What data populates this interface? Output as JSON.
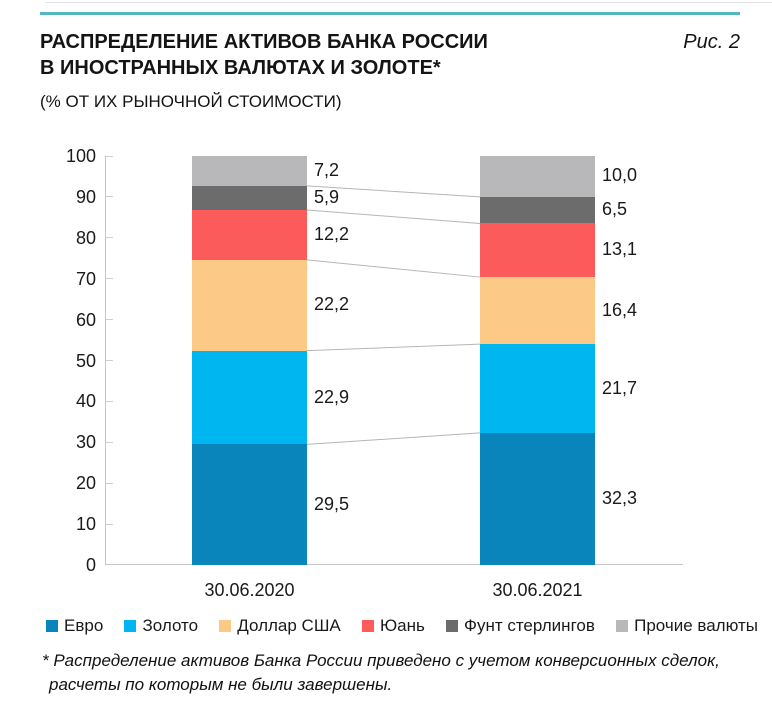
{
  "header": {
    "title_line1": "РАСПРЕДЕЛЕНИЕ АКТИВОВ БАНКА РОССИИ",
    "title_line2": "В ИНОСТРАННЫХ ВАЛЮТАХ И ЗОЛОТЕ*",
    "subtitle": "(% ОТ ИХ РЫНОЧНОЙ СТОИМОСТИ)",
    "figure_label": "Рис. 2",
    "accent_rule_color": "#57b6c3"
  },
  "chart_data": {
    "type": "bar",
    "stacked": true,
    "categories": [
      "30.06.2020",
      "30.06.2021"
    ],
    "series": [
      {
        "name": "Евро",
        "color": "#0985bb",
        "values": [
          29.5,
          32.3
        ]
      },
      {
        "name": "Золото",
        "color": "#00b6f0",
        "values": [
          22.9,
          21.7
        ]
      },
      {
        "name": "Доллар США",
        "color": "#fcca86",
        "values": [
          22.2,
          16.4
        ]
      },
      {
        "name": "Юань",
        "color": "#fc5b5b",
        "values": [
          12.2,
          13.1
        ]
      },
      {
        "name": "Фунт стерлингов",
        "color": "#6c6c6c",
        "values": [
          5.9,
          6.5
        ]
      },
      {
        "name": "Прочие валюты",
        "color": "#b8b8ba",
        "values": [
          7.2,
          10.0
        ]
      }
    ],
    "value_labels": [
      [
        "29,5",
        "22,9",
        "22,2",
        "12,2",
        "5,9",
        "7,2"
      ],
      [
        "32,3",
        "21,7",
        "16,4",
        "13,1",
        "6,5",
        "10,0"
      ]
    ],
    "ylim": [
      0,
      100
    ],
    "yticks": [
      "0",
      "10",
      "20",
      "30",
      "40",
      "50",
      "60",
      "70",
      "80",
      "90",
      "100"
    ],
    "grid": false,
    "legend_position": "bottom",
    "connectors": true,
    "axis_color": "#c6c6c6",
    "connector_color": "#b5b5b5"
  },
  "footnote": {
    "line1": "* Распределение активов Банка России приведено с учетом конверсионных сделок,",
    "line2": "расчеты по которым не были завершены."
  }
}
